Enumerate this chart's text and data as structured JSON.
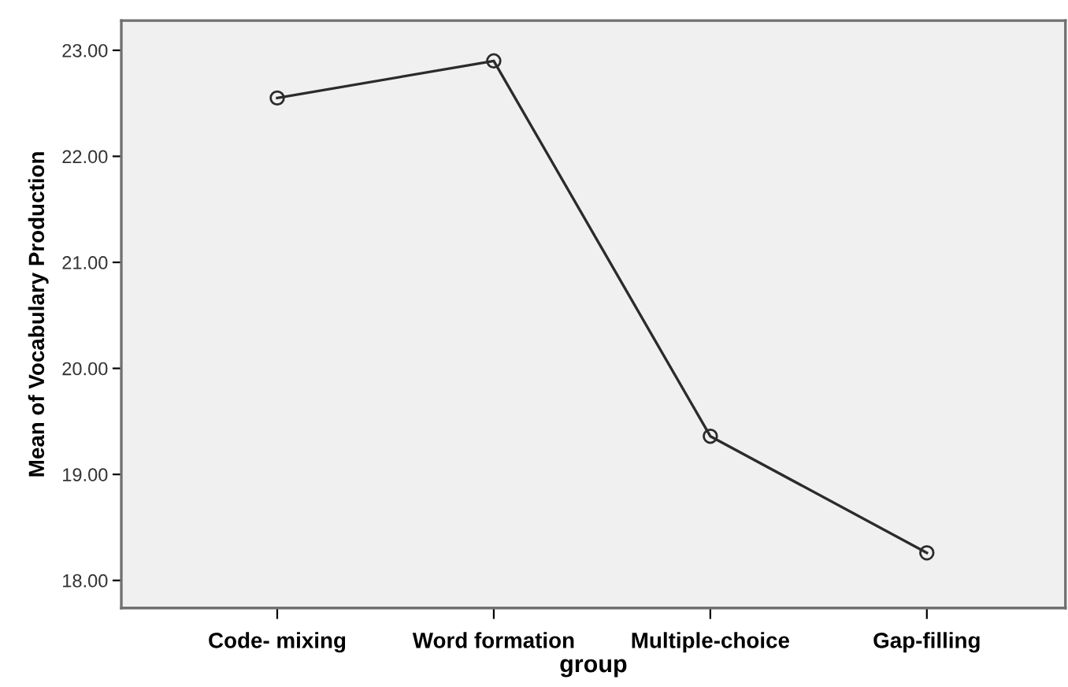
{
  "chart_data": {
    "type": "line",
    "xlabel": "group",
    "ylabel": "Mean of Vocabulary Production",
    "categories": [
      "Code- mixing",
      "Word formation",
      "Multiple-choice",
      "Gap-filling"
    ],
    "series": [
      {
        "color": "#2b2b2b",
        "values": [
          22.55,
          22.9,
          19.36,
          18.26
        ]
      }
    ],
    "ylim": [
      17.74,
      23.28
    ],
    "yticks": [
      {
        "value": 18,
        "label": "18.00"
      },
      {
        "value": 19,
        "label": "19.00"
      },
      {
        "value": 20,
        "label": "20.00"
      },
      {
        "value": 21,
        "label": "21.00"
      },
      {
        "value": 22,
        "label": "22.00"
      },
      {
        "value": 23,
        "label": "23.00"
      }
    ],
    "marker": "circle",
    "line_style": "solid",
    "grid": false,
    "legend": false
  }
}
